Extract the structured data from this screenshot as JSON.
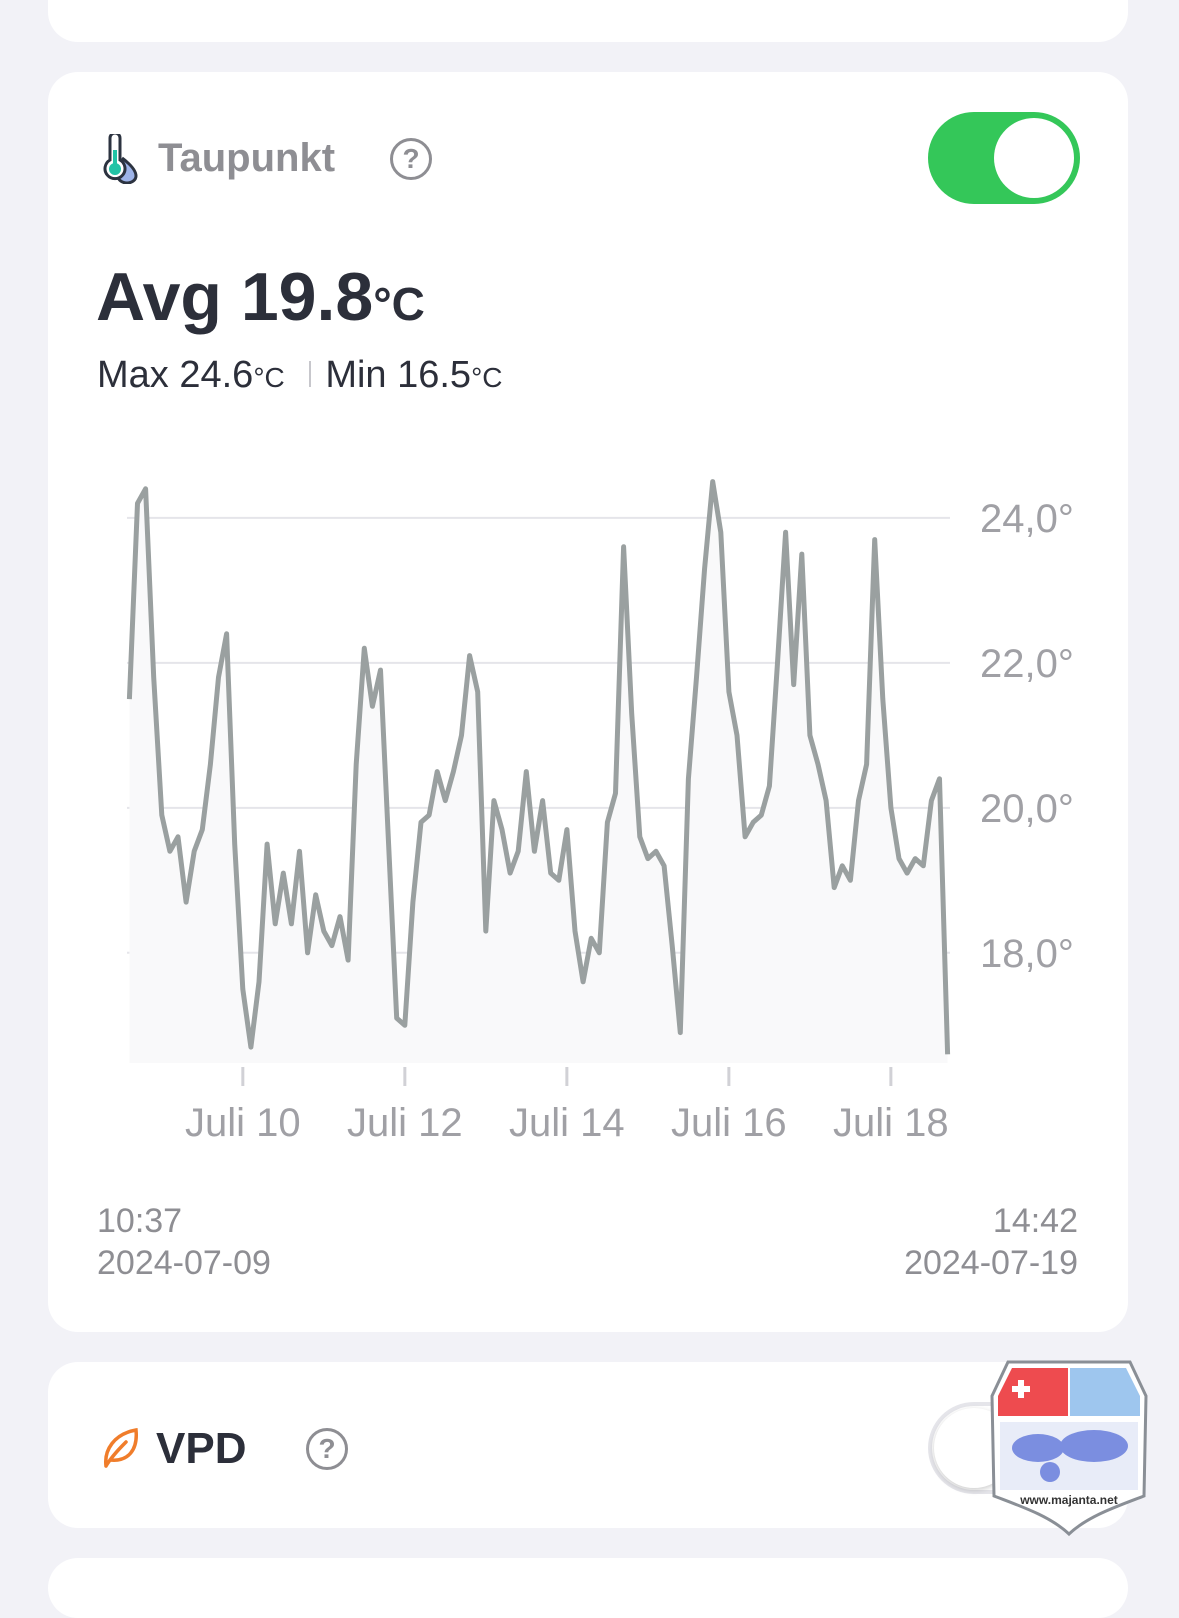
{
  "taupunkt": {
    "title": "Taupunkt",
    "help": "?",
    "enabled": true,
    "avg_label": "Avg",
    "avg_value": "19.8",
    "unit": "°C",
    "max_label": "Max",
    "max_value": "24.6",
    "min_label": "Min",
    "min_value": "16.5",
    "start_time": "10:37",
    "start_date": "2024-07-09",
    "end_time": "14:42",
    "end_date": "2024-07-19"
  },
  "vpd": {
    "title": "VPD",
    "help": "?",
    "enabled": false
  },
  "watermark": {
    "text": "www.majanta.net"
  },
  "chart_data": {
    "type": "line",
    "color": "#9aa0a0",
    "grid": true,
    "x": [
      8.6,
      8.7,
      8.8,
      8.9,
      9.0,
      9.1,
      9.2,
      9.3,
      9.4,
      9.5,
      9.6,
      9.7,
      9.8,
      9.9,
      10.0,
      10.1,
      10.2,
      10.3,
      10.4,
      10.5,
      10.6,
      10.7,
      10.8,
      10.9,
      11.0,
      11.1,
      11.2,
      11.3,
      11.4,
      11.5,
      11.6,
      11.7,
      11.8,
      11.9,
      12.0,
      12.1,
      12.2,
      12.3,
      12.4,
      12.5,
      12.6,
      12.7,
      12.8,
      12.9,
      13.0,
      13.1,
      13.2,
      13.3,
      13.4,
      13.5,
      13.6,
      13.7,
      13.8,
      13.9,
      14.0,
      14.1,
      14.2,
      14.3,
      14.4,
      14.5,
      14.6,
      14.7,
      14.8,
      14.9,
      15.0,
      15.1,
      15.2,
      15.3,
      15.4,
      15.5,
      15.6,
      15.7,
      15.8,
      15.9,
      16.0,
      16.1,
      16.2,
      16.3,
      16.4,
      16.5,
      16.6,
      16.7,
      16.8,
      16.9,
      17.0,
      17.1,
      17.2,
      17.3,
      17.4,
      17.5,
      17.6,
      17.7,
      17.8,
      17.9,
      18.0,
      18.1,
      18.2,
      18.3,
      18.4,
      18.5,
      18.6,
      18.7
    ],
    "values": [
      21.5,
      24.2,
      24.4,
      21.8,
      19.9,
      19.4,
      19.6,
      18.7,
      19.4,
      19.7,
      20.6,
      21.8,
      22.4,
      19.5,
      17.5,
      16.7,
      17.6,
      19.5,
      18.4,
      19.1,
      18.4,
      19.4,
      18.0,
      18.8,
      18.3,
      18.1,
      18.5,
      17.9,
      20.6,
      22.2,
      21.4,
      21.9,
      19.5,
      17.1,
      17.0,
      18.7,
      19.8,
      19.9,
      20.5,
      20.1,
      20.5,
      21.0,
      22.1,
      21.6,
      18.3,
      20.1,
      19.7,
      19.1,
      19.4,
      20.5,
      19.4,
      20.1,
      19.1,
      19.0,
      19.7,
      18.3,
      17.6,
      18.2,
      18.0,
      19.8,
      20.2,
      23.6,
      21.3,
      19.6,
      19.3,
      19.4,
      19.2,
      18.1,
      16.9,
      20.4,
      21.8,
      23.3,
      24.5,
      23.8,
      21.6,
      21.0,
      19.6,
      19.8,
      19.9,
      20.3,
      22.0,
      23.8,
      21.7,
      23.5,
      21.0,
      20.6,
      20.1,
      18.9,
      19.2,
      19.0,
      20.1,
      20.6,
      23.7,
      21.5,
      20.0,
      19.3,
      19.1,
      19.3,
      19.2,
      20.1,
      20.4,
      16.6
    ],
    "xlim": [
      8.57,
      18.73
    ],
    "xticks": [
      {
        "value": 10,
        "label": "Juli 10"
      },
      {
        "value": 12,
        "label": "Juli 12"
      },
      {
        "value": 14,
        "label": "Juli 14"
      },
      {
        "value": 16,
        "label": "Juli 16"
      },
      {
        "value": 18,
        "label": "Juli 18"
      }
    ],
    "ylim": [
      16.48,
      24.66
    ],
    "yticks": [
      {
        "value": 18,
        "label": "18,0°"
      },
      {
        "value": 20,
        "label": "20,0°"
      },
      {
        "value": 22,
        "label": "22,0°"
      },
      {
        "value": 24,
        "label": "24,0°"
      }
    ]
  }
}
